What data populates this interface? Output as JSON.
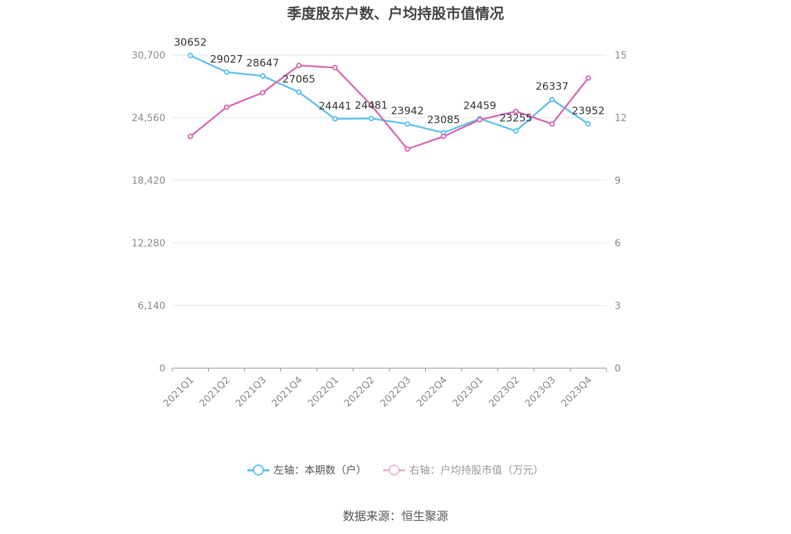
{
  "title": "季度股东户数、户均持股市值情况",
  "chart_data": {
    "type": "line",
    "categories": [
      "2021Q1",
      "2021Q2",
      "2021Q3",
      "2021Q4",
      "2022Q1",
      "2022Q2",
      "2022Q3",
      "2022Q4",
      "2023Q1",
      "2023Q2",
      "2023Q3",
      "2023Q4"
    ],
    "left_axis": {
      "ticks": [
        "0",
        "6,140",
        "12,280",
        "18,420",
        "24,560",
        "30,700"
      ],
      "min": 0,
      "max": 30700
    },
    "right_axis": {
      "ticks": [
        "0",
        "3",
        "6",
        "9",
        "12",
        "15"
      ],
      "min": 0,
      "max": 15
    },
    "series": [
      {
        "name": "左轴：本期数（户）",
        "axis": "left",
        "color": "#5bc0eb",
        "values": [
          30652,
          29027,
          28647,
          27065,
          24441,
          24481,
          23942,
          23085,
          24459,
          23255,
          26337,
          23952
        ],
        "labels": [
          "30652",
          "29027",
          "28647",
          "27065",
          "24441",
          "24481",
          "23942",
          "23085",
          "24459",
          "23255",
          "26337",
          "23952"
        ]
      },
      {
        "name": "右轴：户均持股市值（万元）",
        "axis": "right",
        "color": "#d467b0",
        "values": [
          11.1,
          12.5,
          13.2,
          14.5,
          14.4,
          12.6,
          10.5,
          11.1,
          11.9,
          12.3,
          11.7,
          13.9
        ]
      }
    ],
    "grid": true,
    "legend_position": "bottom"
  },
  "source": "数据来源：恒生聚源"
}
